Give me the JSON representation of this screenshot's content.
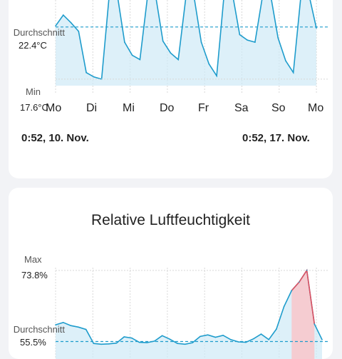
{
  "temperature_card": {
    "avg_label": "Durchschnitt",
    "avg_value": "22.4°C",
    "min_label": "Min",
    "min_value": "17.6°C",
    "days": [
      "Mo",
      "Di",
      "Mi",
      "Do",
      "Fr",
      "Sa",
      "So",
      "Mo"
    ],
    "range_start": "0:52,  10. Nov.",
    "range_end": "0:52,  17. Nov."
  },
  "humidity_card": {
    "title": "Relative Luftfeuchtigkeit",
    "max_label": "Max",
    "max_value": "73.8%",
    "avg_label": "Durchschnitt",
    "avg_value": "55.5%"
  },
  "colors": {
    "line": "#1e9ccc",
    "avg_line": "#1e9ccc",
    "fill": "#cfe9f7",
    "max_fill": "#f7c8cc",
    "max_line": "#e05060",
    "grid": "#d8d8d8"
  },
  "chart_data": [
    {
      "type": "line",
      "series": [
        {
          "values": [
            22.5,
            23.5,
            22.8,
            22.0,
            18.2,
            17.8,
            17.6,
            25.4,
            25.6,
            21.0,
            19.8,
            19.4,
            25.3,
            25.5,
            21.1,
            20.0,
            19.4,
            25.2,
            25.4,
            21.0,
            19.0,
            17.9,
            25.6,
            25.7,
            21.7,
            21.2,
            21.0,
            25.3,
            25.5,
            21.4,
            19.3,
            18.2,
            25.4,
            25.5,
            22.3
          ]
        }
      ],
      "yticks": [
        "22.4°C",
        "17.6°C"
      ],
      "avg": 22.4,
      "min": 17.6,
      "xticks": [
        "Mo",
        "Di",
        "Mi",
        "Do",
        "Fr",
        "Sa",
        "So",
        "Mo"
      ]
    },
    {
      "type": "line",
      "title": "Relative Luftfeuchtigkeit",
      "series": [
        {
          "values": [
            59.8,
            60.4,
            59.6,
            59.2,
            58.6,
            55.0,
            54.8,
            54.9,
            55.1,
            56.7,
            56.4,
            55.3,
            55.2,
            55.6,
            57.0,
            56.1,
            55.0,
            54.8,
            55.2,
            56.8,
            57.2,
            56.6,
            57.1,
            56.0,
            55.4,
            55.3,
            56.2,
            57.4,
            56.0,
            58.7,
            64.5,
            68.6,
            70.8,
            73.8,
            60.0,
            56.0
          ]
        }
      ],
      "yticks": [
        "73.8%",
        "55.5%"
      ],
      "max": 73.8,
      "avg": 55.5
    }
  ]
}
